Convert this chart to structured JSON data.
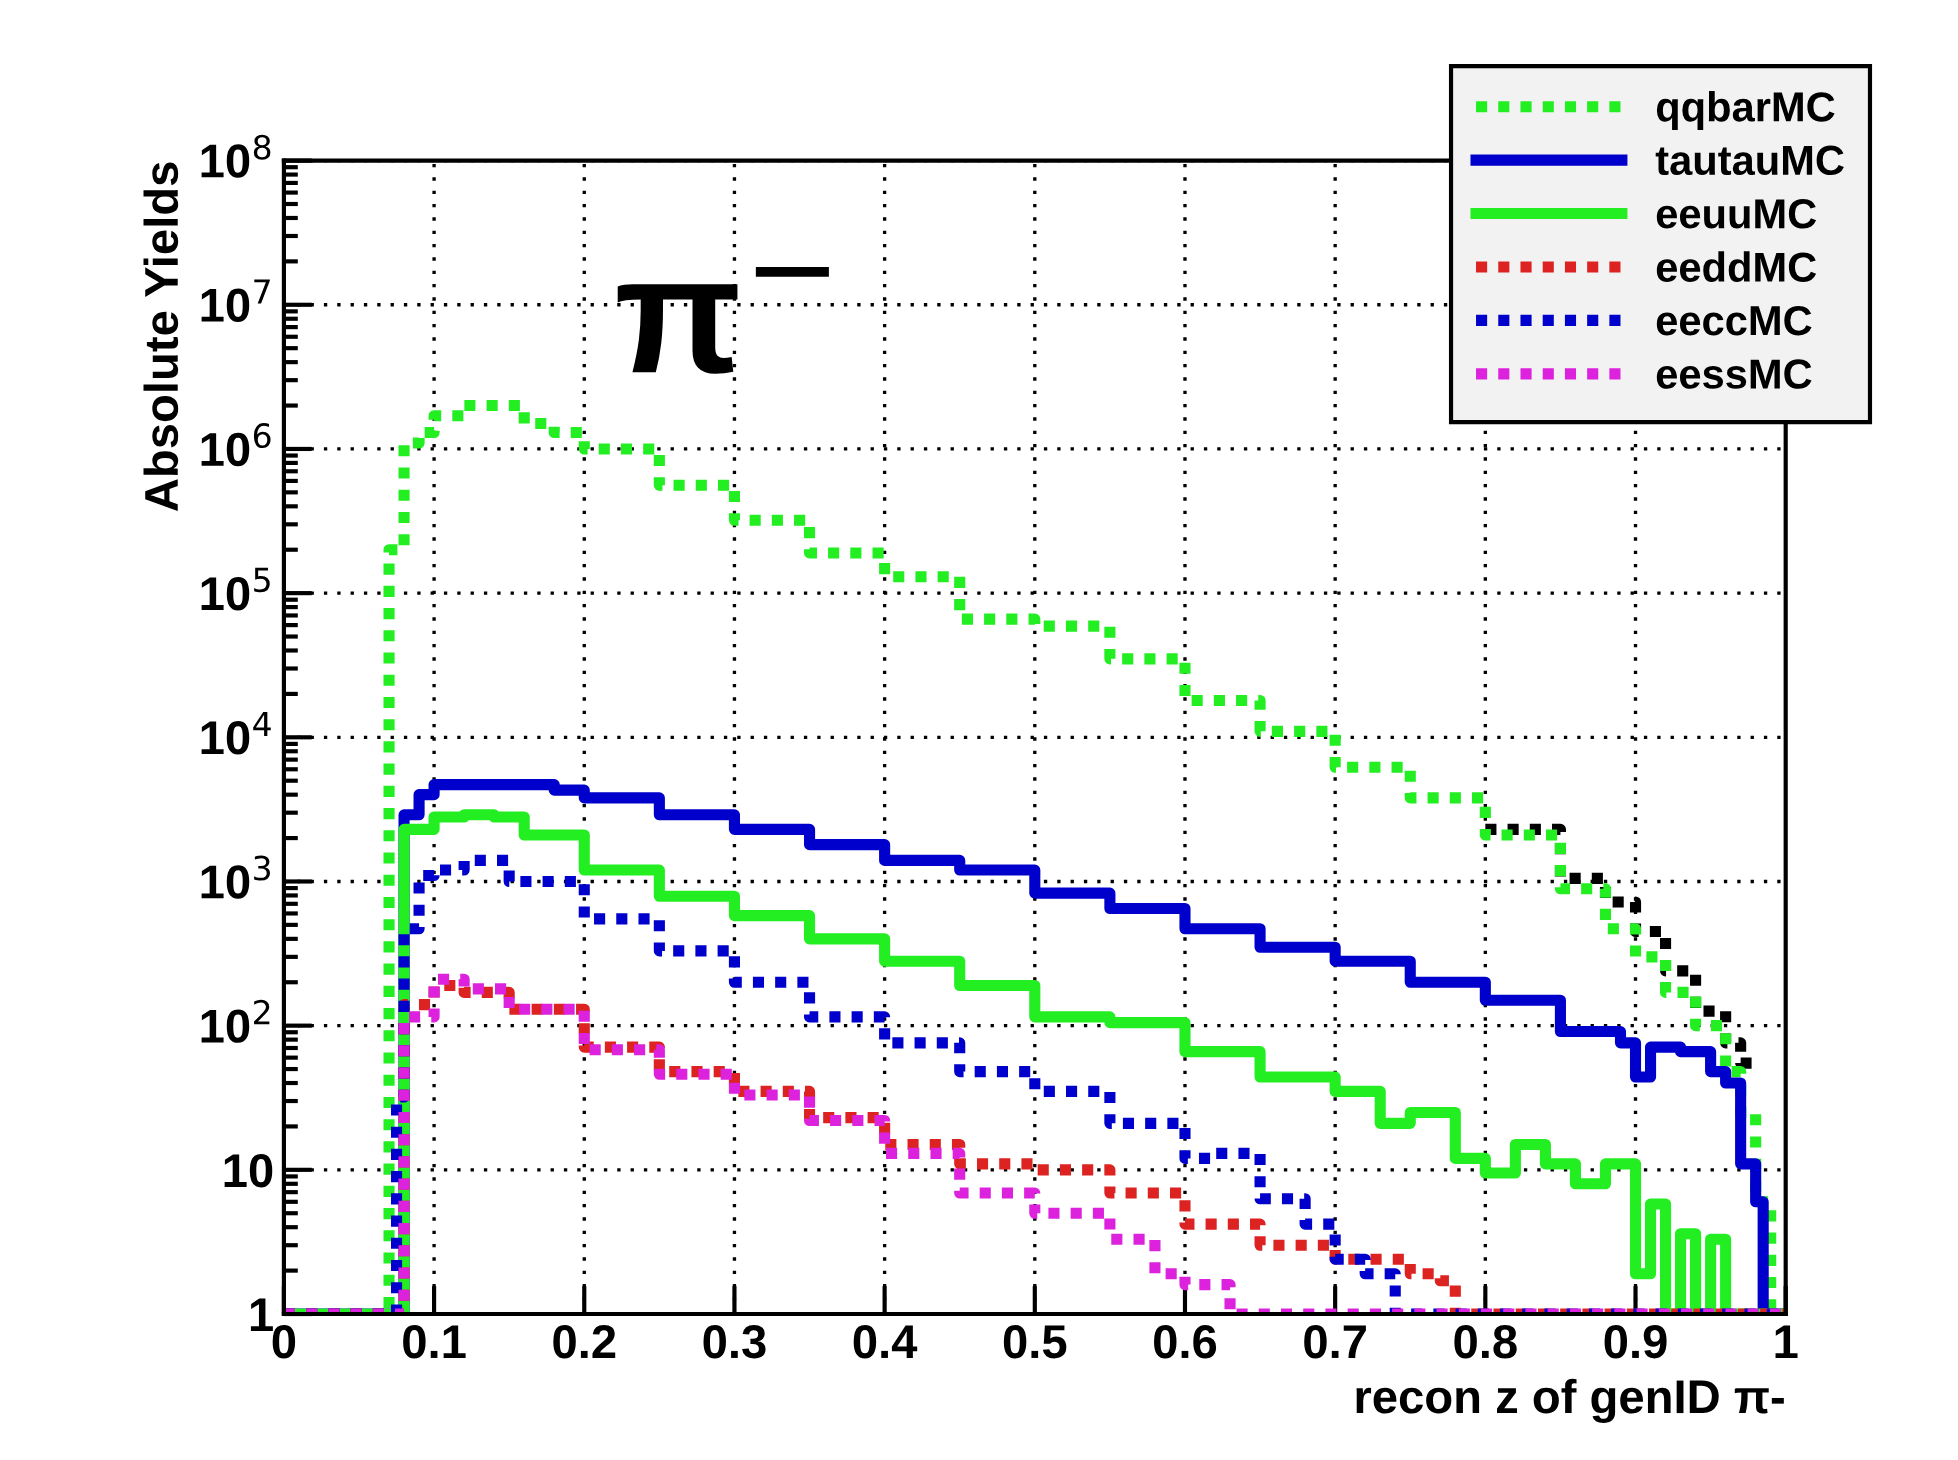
{
  "chart_data": {
    "type": "step",
    "xlabel": "recon z of genID π-",
    "ylabel": "Absolute Yields",
    "annotations": [
      "π$^{−}$"
    ],
    "log": "y",
    "grid": true,
    "legend": "top right",
    "xlim": [
      0,
      1
    ],
    "ylim": [
      1,
      100000000
    ],
    "xticks": [
      0,
      {
        "value": 0.1,
        "label": "0.1"
      },
      {
        "value": 0.2,
        "label": "0.2"
      },
      {
        "value": 0.3,
        "label": "0.3"
      },
      {
        "value": 0.4,
        "label": "0.4"
      },
      {
        "value": 0.5,
        "label": "0.5"
      },
      {
        "value": 0.6,
        "label": "0.6"
      },
      {
        "value": 0.7,
        "label": "0.7"
      },
      {
        "value": 0.8,
        "label": "0.8"
      },
      {
        "value": 0.9,
        "label": "0.9"
      },
      1
    ],
    "yticks": [
      1,
      10,
      {
        "value": 100,
        "label": "10$^{2}$"
      },
      {
        "value": 1000,
        "label": "10$^{3}$"
      },
      {
        "value": 10000,
        "label": "10$^{4}$"
      },
      {
        "value": 100000,
        "label": "10$^{5}$"
      },
      {
        "value": 1000000,
        "label": "10$^{6}$"
      },
      {
        "value": 10000000,
        "label": "10$^{7}$"
      },
      {
        "value": 100000000,
        "label": "10$^{8}$"
      }
    ],
    "series": [
      {
        "color": "#000000",
        "line_style": "dotted",
        "x": [
          0.8,
          0.85,
          0.88,
          0.9,
          0.92,
          0.94,
          0.96,
          0.97,
          0.98
        ],
        "values": [
          2300,
          1050,
          720,
          450,
          240,
          126,
          76,
          55,
          55
        ]
      },
      {
        "name": "qqbarMC",
        "color": "#22ee22",
        "line_style": "dotted",
        "x": [
          0,
          0.07,
          0.08,
          0.09,
          0.1,
          0.12,
          0.14,
          0.16,
          0.18,
          0.2,
          0.25,
          0.3,
          0.35,
          0.4,
          0.45,
          0.5,
          0.55,
          0.6,
          0.65,
          0.7,
          0.75,
          0.8,
          0.85,
          0.88,
          0.9,
          0.92,
          0.94,
          0.96,
          0.97,
          0.98,
          0.99,
          1
        ],
        "values": [
          1,
          200000,
          1100000,
          1300000,
          1700000,
          2000000,
          2000000,
          1500000,
          1300000,
          1000000,
          560000,
          320000,
          190000,
          130000,
          66000,
          59000,
          35000,
          18000,
          11000,
          6200,
          3800,
          2100,
          890,
          470,
          300,
          170,
          100,
          48,
          25,
          6,
          1,
          1
        ]
      },
      {
        "name": "tautauMC",
        "color": "#0000cc",
        "line_style": "solid",
        "x": [
          0,
          0.08,
          0.09,
          0.1,
          0.14,
          0.18,
          0.2,
          0.25,
          0.3,
          0.35,
          0.4,
          0.45,
          0.5,
          0.55,
          0.6,
          0.65,
          0.7,
          0.75,
          0.8,
          0.85,
          0.89,
          0.9,
          0.91,
          0.93,
          0.95,
          0.96,
          0.97,
          0.98,
          0.985,
          1
        ],
        "values": [
          1,
          2900,
          4000,
          4700,
          4700,
          4300,
          3800,
          2900,
          2300,
          1800,
          1400,
          1200,
          830,
          650,
          470,
          350,
          280,
          200,
          150,
          91,
          76,
          44,
          71,
          66,
          48,
          40,
          11,
          6,
          1,
          1
        ]
      },
      {
        "name": "eeuuMC",
        "color": "#22ee22",
        "line_style": "solid",
        "x": [
          0,
          0.08,
          0.1,
          0.12,
          0.14,
          0.16,
          0.2,
          0.25,
          0.3,
          0.35,
          0.4,
          0.45,
          0.5,
          0.55,
          0.6,
          0.65,
          0.7,
          0.73,
          0.75,
          0.78,
          0.8,
          0.82,
          0.84,
          0.86,
          0.88,
          0.9,
          0.91,
          0.92,
          0.93,
          0.94,
          0.95,
          0.96,
          1
        ],
        "values": [
          1,
          2300,
          2800,
          2900,
          2800,
          2100,
          1200,
          790,
          580,
          400,
          280,
          190,
          115,
          105,
          66,
          44,
          35,
          21,
          25,
          12,
          9.5,
          15,
          11,
          8,
          11,
          1.9,
          5.8,
          1,
          3.6,
          1,
          3.3,
          1,
          1
        ]
      },
      {
        "name": "eeddMC",
        "color": "#dd2222",
        "line_style": "dotted",
        "x": [
          0,
          0.08,
          0.1,
          0.12,
          0.15,
          0.2,
          0.25,
          0.3,
          0.35,
          0.4,
          0.45,
          0.5,
          0.55,
          0.6,
          0.65,
          0.7,
          0.75,
          0.77,
          0.78,
          1
        ],
        "values": [
          1,
          140,
          190,
          170,
          130,
          71,
          48,
          35,
          23,
          15,
          11,
          10,
          6.9,
          4.2,
          3,
          2.4,
          1.9,
          1.7,
          1,
          1
        ]
      },
      {
        "name": "eeccMC",
        "color": "#0000cc",
        "line_style": "dotted",
        "x": [
          0,
          0.075,
          0.08,
          0.09,
          0.1,
          0.12,
          0.15,
          0.2,
          0.25,
          0.3,
          0.35,
          0.4,
          0.45,
          0.5,
          0.55,
          0.6,
          0.62,
          0.65,
          0.68,
          0.7,
          0.72,
          0.74,
          1
        ],
        "values": [
          1,
          32,
          470,
          1100,
          1200,
          1400,
          1000,
          550,
          330,
          200,
          115,
          76,
          48,
          35,
          21,
          12,
          13,
          6.3,
          4.2,
          2.4,
          1.9,
          1,
          1
        ]
      },
      {
        "name": "eessMC",
        "color": "#dd22dd",
        "line_style": "dotted",
        "x": [
          0,
          0.08,
          0.1,
          0.12,
          0.15,
          0.2,
          0.25,
          0.3,
          0.35,
          0.4,
          0.45,
          0.5,
          0.55,
          0.58,
          0.6,
          0.63,
          1
        ],
        "values": [
          1,
          115,
          210,
          180,
          130,
          68,
          46,
          33,
          22,
          13,
          6.9,
          5,
          3.3,
          1.9,
          1.6,
          1,
          1
        ]
      }
    ]
  }
}
